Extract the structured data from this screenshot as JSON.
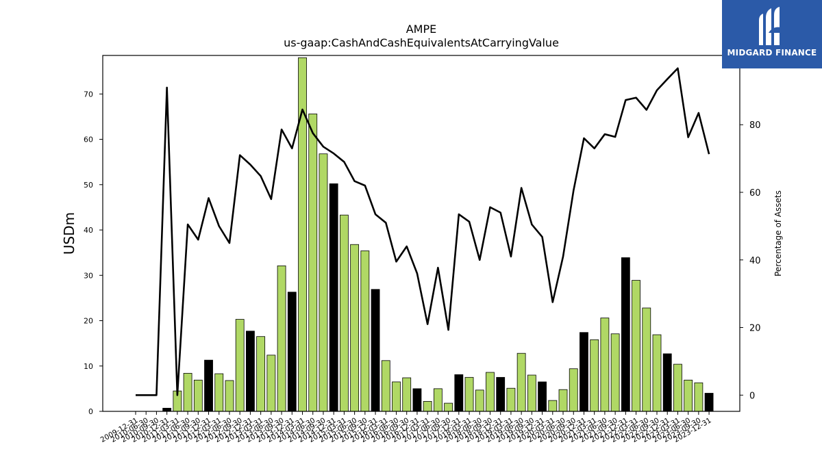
{
  "chart_data": {
    "type": "bar",
    "title": "AMPE",
    "subtitle": "us-gaap:CashAndCashEquivalentsAtCarryingValue",
    "ylabel": "USDm",
    "y2label": "Percentage of Assets",
    "ylim": [
      0,
      78.5
    ],
    "y2lim": [
      -4.8,
      100.5
    ],
    "yticks": [
      0,
      10,
      20,
      30,
      40,
      50,
      60,
      70
    ],
    "y2ticks": [
      0,
      20,
      40,
      60,
      80
    ],
    "grid": false,
    "colors": {
      "bar": "#b0d865",
      "bar_highlight": "#000000",
      "line": "#000000"
    },
    "categories": [
      "2009-12-31",
      "2010-06-30",
      "2010-09-30",
      "2010-12-31",
      "2011-03-31",
      "2011-06-30",
      "2011-09-30",
      "2011-12-31",
      "2012-03-31",
      "2012-06-30",
      "2012-09-30",
      "2012-12-31",
      "2013-03-31",
      "2013-06-30",
      "2013-09-30",
      "2013-12-31",
      "2014-03-31",
      "2014-06-30",
      "2014-09-30",
      "2014-12-31",
      "2015-03-31",
      "2015-06-30",
      "2015-09-30",
      "2015-12-31",
      "2016-03-31",
      "2016-06-30",
      "2016-09-30",
      "2016-12-31",
      "2017-03-31",
      "2017-06-30",
      "2017-09-30",
      "2017-12-31",
      "2018-03-31",
      "2018-06-30",
      "2018-09-30",
      "2018-12-31",
      "2019-03-31",
      "2019-06-30",
      "2019-09-30",
      "2019-12-31",
      "2020-03-31",
      "2020-06-30",
      "2020-09-30",
      "2020-12-31",
      "2021-03-31",
      "2021-06-30",
      "2021-09-30",
      "2021-12-31",
      "2022-03-31",
      "2022-06-30",
      "2022-09-30",
      "2022-12-31",
      "2023-03-31",
      "2023-06-30",
      "2023-09-30",
      "2023-12-31"
    ],
    "series": [
      {
        "kind": "bar",
        "values": [
          0,
          0,
          0,
          0.7,
          4.5,
          8.4,
          6.9,
          11.3,
          8.3,
          6.8,
          20.3,
          17.7,
          16.5,
          12.4,
          32.1,
          26.3,
          78.0,
          65.6,
          56.8,
          50.2,
          43.3,
          36.8,
          35.4,
          26.9,
          11.2,
          6.5,
          7.4,
          5.0,
          2.2,
          5.0,
          1.8,
          8.1,
          7.5,
          4.7,
          8.6,
          7.5,
          5.1,
          12.8,
          8.0,
          6.5,
          2.4,
          4.8,
          9.4,
          17.4,
          15.8,
          20.6,
          17.1,
          33.9,
          28.9,
          22.8,
          16.9,
          12.7,
          10.4,
          6.9,
          6.3,
          4.0
        ],
        "highlight": [
          false,
          false,
          false,
          true,
          false,
          false,
          false,
          true,
          false,
          false,
          false,
          true,
          false,
          false,
          false,
          true,
          false,
          false,
          false,
          true,
          false,
          false,
          false,
          true,
          false,
          false,
          false,
          true,
          false,
          false,
          false,
          true,
          false,
          false,
          false,
          true,
          false,
          false,
          false,
          true,
          false,
          false,
          false,
          true,
          false,
          false,
          false,
          true,
          false,
          false,
          false,
          true,
          false,
          false,
          false,
          true
        ]
      },
      {
        "kind": "line",
        "axis": "right",
        "values": [
          0,
          0,
          0,
          91,
          0,
          50.5,
          46,
          58.3,
          50,
          45,
          71,
          68.2,
          64.8,
          58,
          78.6,
          73,
          84.5,
          77.5,
          73.5,
          71.5,
          69,
          63.3,
          62,
          53.5,
          51,
          39.5,
          44,
          36,
          21,
          37.7,
          19.3,
          53.5,
          51.3,
          40,
          55.6,
          54,
          41,
          61.3,
          50.5,
          46.8,
          27.5,
          41,
          60.5,
          76,
          73,
          77.2,
          76.4,
          87.3,
          88,
          84.4,
          90.2,
          93.5,
          96.7,
          76.3,
          83.5,
          71.3
        ]
      }
    ]
  },
  "logo": {
    "text": "MIDGARD FINANCE"
  }
}
